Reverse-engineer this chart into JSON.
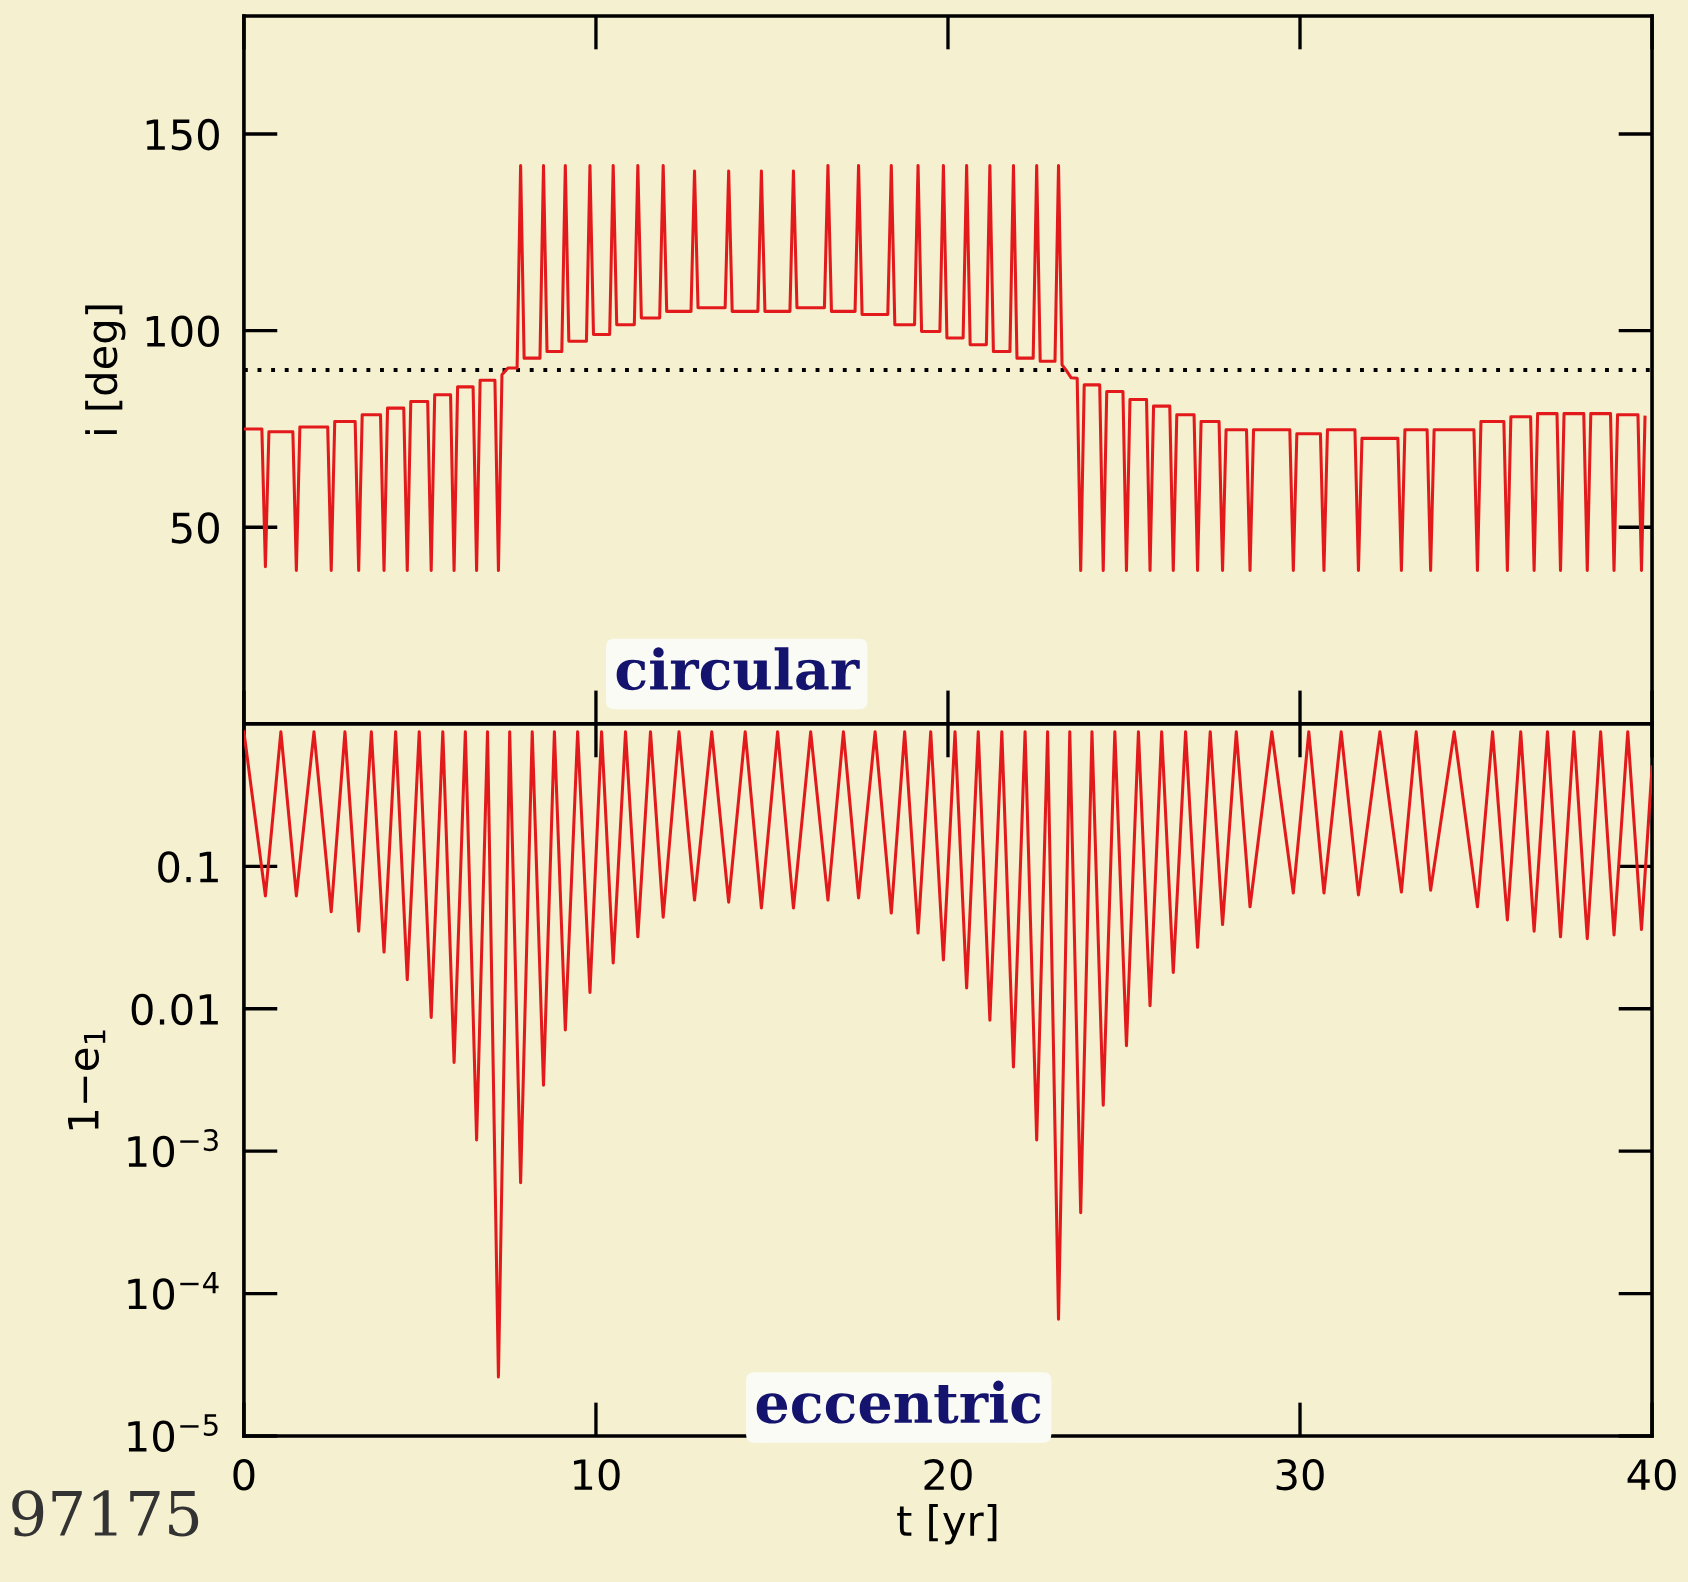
{
  "chart_data": [
    {
      "type": "line",
      "ylabel": "i [deg]",
      "xlim": [
        0,
        40
      ],
      "ylim": [
        0,
        180
      ],
      "tick_labels": "y",
      "line_style": "solid",
      "xticks": [
        0,
        10,
        20,
        30,
        40
      ],
      "yticks": [
        50,
        100,
        150
      ],
      "ref_lines": [
        {
          "axis": "y",
          "value": 90,
          "color": "#000000",
          "line_style": "dotted"
        }
      ],
      "series": [
        {
          "color": "#e31a1c",
          "x": [
            0,
            0.51,
            0.61,
            0.71,
            1.39,
            1.49,
            1.59,
            2.38,
            2.48,
            2.58,
            3.16,
            3.26,
            3.36,
            3.88,
            3.98,
            4.08,
            4.54,
            4.64,
            4.74,
            5.22,
            5.32,
            5.42,
            5.87,
            5.97,
            6.07,
            6.51,
            6.61,
            6.71,
            7.13,
            7.23,
            7.33,
            7.5,
            7.76,
            7.86,
            7.96,
            8.41,
            8.51,
            8.61,
            9.03,
            9.13,
            9.23,
            9.73,
            9.83,
            9.93,
            10.39,
            10.49,
            10.59,
            11.09,
            11.19,
            11.29,
            11.81,
            11.91,
            12.01,
            12.7,
            12.8,
            12.9,
            13.67,
            13.77,
            13.87,
            14.6,
            14.7,
            14.8,
            15.51,
            15.61,
            15.71,
            16.49,
            16.59,
            16.69,
            17.36,
            17.46,
            17.56,
            18.29,
            18.39,
            18.49,
            19.05,
            19.15,
            19.25,
            19.77,
            19.87,
            19.97,
            20.43,
            20.53,
            20.63,
            21.09,
            21.19,
            21.29,
            21.76,
            21.86,
            21.96,
            22.42,
            22.52,
            22.62,
            23.04,
            23.14,
            23.24,
            23.35,
            23.5,
            23.67,
            23.77,
            23.87,
            24.31,
            24.41,
            24.51,
            24.97,
            25.07,
            25.17,
            25.64,
            25.74,
            25.84,
            26.3,
            26.4,
            26.5,
            26.99,
            27.09,
            27.19,
            27.7,
            27.8,
            27.9,
            28.48,
            28.58,
            28.68,
            29.71,
            29.81,
            29.91,
            30.58,
            30.68,
            30.78,
            31.56,
            31.66,
            31.76,
            32.78,
            32.88,
            32.98,
            33.61,
            33.71,
            33.81,
            34.94,
            35.04,
            35.14,
            35.79,
            35.89,
            35.99,
            36.55,
            36.65,
            36.75,
            37.3,
            37.4,
            37.5,
            38.06,
            38.16,
            38.26,
            38.82,
            38.92,
            39.02,
            39.6,
            39.7,
            39.8
          ],
          "values": [
            75,
            75,
            40,
            74.3,
            74.3,
            39,
            75.5,
            75.5,
            39,
            76.9,
            76.9,
            39,
            78.6,
            78.6,
            39,
            80.3,
            80.3,
            39,
            82,
            82,
            39,
            83.7,
            83.7,
            39,
            85.7,
            85.7,
            39,
            87.4,
            87.4,
            39,
            88.8,
            90.5,
            90.5,
            142,
            93,
            93,
            142,
            94.7,
            94.7,
            142,
            97.3,
            97.3,
            142,
            99,
            99,
            142,
            101.5,
            101.5,
            142,
            103.2,
            103.2,
            142,
            104.9,
            104.9,
            140.6,
            105.8,
            105.8,
            140.6,
            104.9,
            104.9,
            140.6,
            104.9,
            104.9,
            140.6,
            105.8,
            105.8,
            142,
            104.9,
            104.9,
            142,
            104.1,
            104.1,
            142,
            101.5,
            101.5,
            142,
            99.8,
            99.8,
            142,
            98.1,
            98.1,
            142,
            96.4,
            96.4,
            142,
            94.7,
            94.7,
            142,
            93,
            93,
            142,
            92.2,
            92.2,
            142,
            91.3,
            90,
            88,
            87.9,
            39,
            86.2,
            86.2,
            39,
            84.5,
            84.5,
            39,
            82.5,
            82.5,
            39,
            80.8,
            80.8,
            39,
            78.6,
            78.6,
            39,
            76.9,
            76.9,
            39,
            74.8,
            74.8,
            39,
            74.8,
            74.8,
            39,
            73.8,
            73.8,
            39,
            74.8,
            74.8,
            39,
            72.6,
            72.6,
            39,
            74.8,
            74.8,
            39,
            74.8,
            74.8,
            39,
            76.9,
            76.9,
            39,
            78.1,
            78.1,
            39,
            78.9,
            78.9,
            39,
            78.9,
            78.9,
            39,
            78.9,
            78.9,
            39,
            78.6,
            78.6,
            39,
            78
          ]
        }
      ]
    },
    {
      "type": "line",
      "xlabel": "t [yr]",
      "ylabel": "1−e$_{1}$",
      "log": true,
      "xlim": [
        0,
        40
      ],
      "ylim": [
        1e-05,
        1
      ],
      "line_style": "solid",
      "xticks": [
        0,
        10,
        20,
        30,
        40
      ],
      "yticks": [
        {
          "value": 1e-05,
          "label": "10$^{−5}$"
        },
        {
          "value": 0.0001,
          "label": "10$^{−4}$"
        },
        {
          "value": 0.001,
          "label": "10$^{−3}$"
        },
        0.01,
        0.1
      ],
      "annotations": [
        "circular",
        "eccentric",
        "97175"
      ],
      "series": [
        {
          "color": "#e31a1c",
          "x": [
            0,
            0.61,
            1.05,
            1.49,
            1.99,
            2.48,
            2.87,
            3.26,
            3.62,
            3.98,
            4.31,
            4.64,
            4.98,
            5.32,
            5.65,
            5.97,
            6.29,
            6.61,
            6.92,
            7.23,
            7.55,
            7.86,
            8.19,
            8.51,
            8.82,
            9.13,
            9.48,
            9.83,
            10.16,
            10.49,
            10.84,
            11.19,
            11.55,
            11.91,
            12.36,
            12.8,
            13.29,
            13.77,
            14.24,
            14.7,
            15.16,
            15.61,
            16.1,
            16.59,
            17.03,
            17.46,
            17.93,
            18.39,
            18.77,
            19.15,
            19.51,
            19.87,
            20.2,
            20.53,
            20.86,
            21.19,
            21.53,
            21.86,
            22.19,
            22.52,
            22.83,
            23.14,
            23.46,
            23.77,
            24.09,
            24.41,
            24.74,
            25.07,
            25.41,
            25.74,
            26.07,
            26.4,
            26.75,
            27.09,
            27.45,
            27.8,
            28.19,
            28.58,
            29.2,
            29.81,
            30.25,
            30.68,
            31.17,
            31.66,
            32.27,
            32.88,
            33.3,
            33.71,
            34.38,
            35.04,
            35.47,
            35.89,
            36.27,
            36.65,
            37.03,
            37.4,
            37.78,
            38.16,
            38.54,
            38.92,
            39.31,
            39.7,
            40
          ],
          "values": [
            0.88,
            0.062,
            0.88,
            0.062,
            0.88,
            0.048,
            0.88,
            0.035,
            0.88,
            0.025,
            0.88,
            0.016,
            0.88,
            0.0087,
            0.88,
            0.0042,
            0.88,
            0.0012,
            0.88,
            2.6e-05,
            0.88,
            0.0006,
            0.88,
            0.0029,
            0.88,
            0.0071,
            0.88,
            0.013,
            0.88,
            0.021,
            0.88,
            0.032,
            0.88,
            0.044,
            0.88,
            0.058,
            0.88,
            0.056,
            0.88,
            0.051,
            0.88,
            0.051,
            0.88,
            0.058,
            0.88,
            0.06,
            0.88,
            0.047,
            0.88,
            0.034,
            0.88,
            0.022,
            0.88,
            0.014,
            0.88,
            0.0083,
            0.88,
            0.0039,
            0.88,
            0.0012,
            0.88,
            6.6e-05,
            0.88,
            0.00037,
            0.88,
            0.0021,
            0.88,
            0.0055,
            0.88,
            0.0105,
            0.88,
            0.018,
            0.88,
            0.027,
            0.88,
            0.039,
            0.88,
            0.052,
            0.88,
            0.065,
            0.88,
            0.065,
            0.88,
            0.063,
            0.88,
            0.066,
            0.88,
            0.068,
            0.88,
            0.052,
            0.88,
            0.042,
            0.88,
            0.035,
            0.88,
            0.032,
            0.88,
            0.031,
            0.88,
            0.033,
            0.88,
            0.036,
            0.5
          ]
        }
      ]
    }
  ]
}
